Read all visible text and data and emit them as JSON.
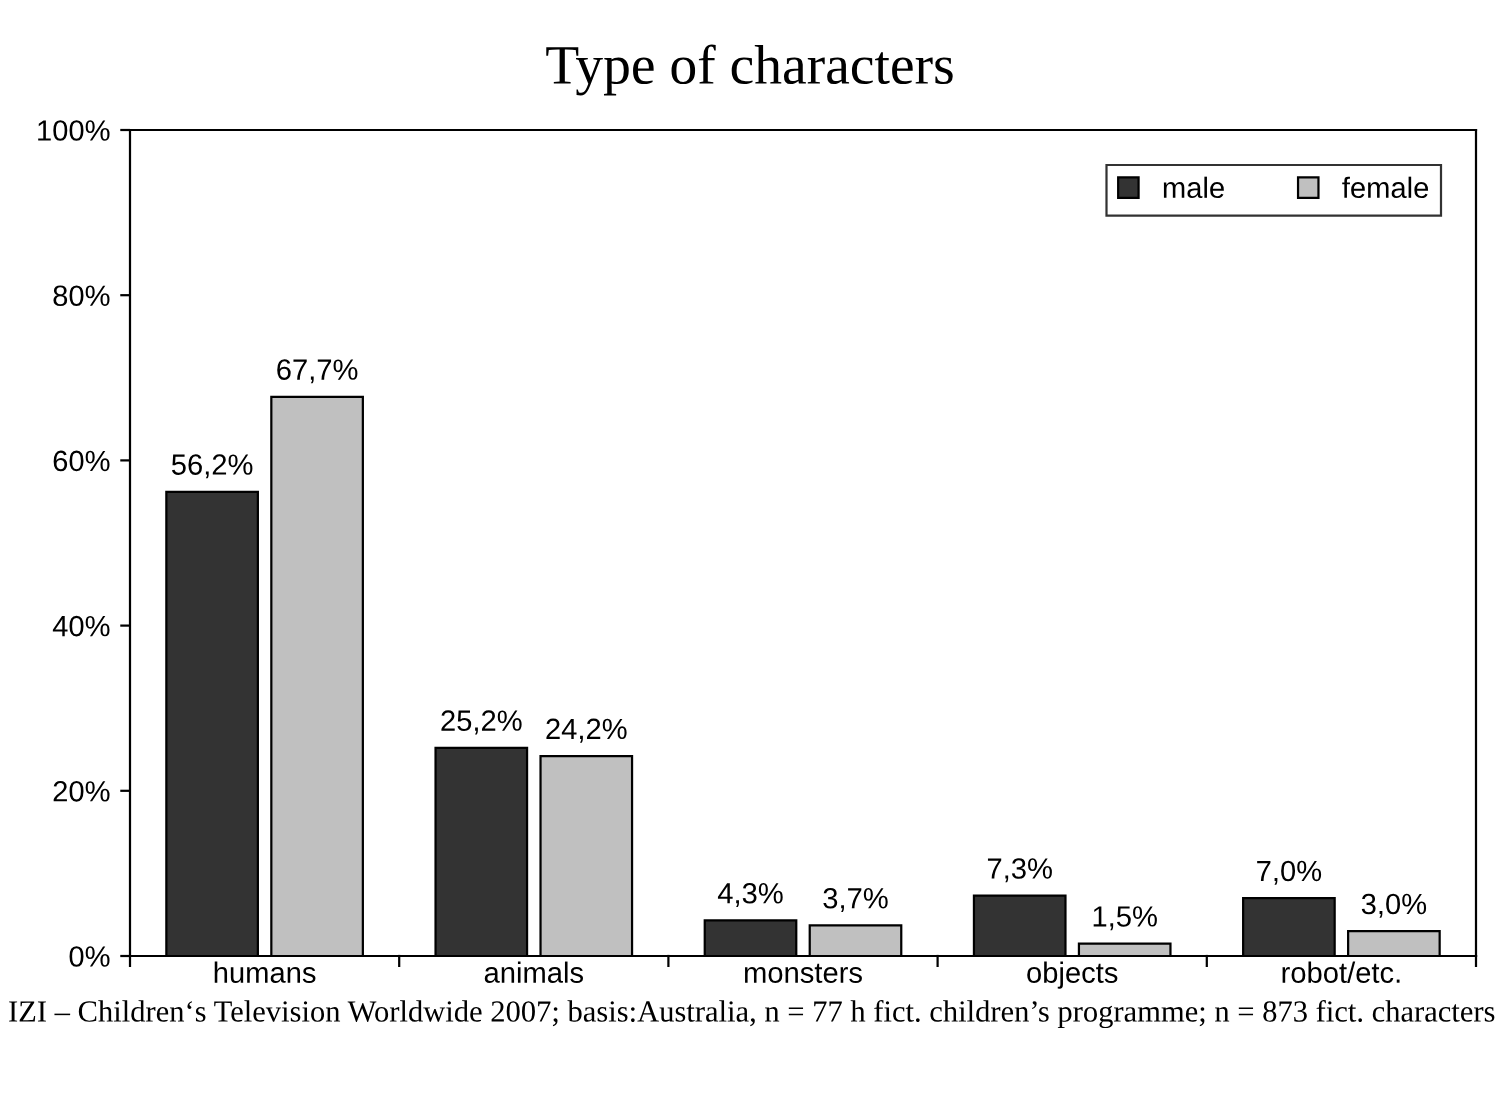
{
  "chart_data": {
    "type": "bar",
    "title": "Type of characters",
    "categories": [
      "humans",
      "animals",
      "monsters",
      "objects",
      "robot/etc."
    ],
    "series": [
      {
        "name": "male",
        "color": "#333333",
        "values": [
          56.2,
          25.2,
          4.3,
          7.3,
          7.0
        ],
        "value_labels": [
          "56,2%",
          "25,2%",
          "4,3%",
          "7,3%",
          "7,0%"
        ]
      },
      {
        "name": "female",
        "color": "#c0c0c0",
        "values": [
          67.7,
          24.2,
          3.7,
          1.5,
          3.0
        ],
        "value_labels": [
          "67,7%",
          "24,2%",
          "3,7%",
          "1,5%",
          "3,0%"
        ]
      }
    ],
    "ylim": [
      0,
      100
    ],
    "yticks": [
      {
        "value": 0,
        "label": "0%"
      },
      {
        "value": 20,
        "label": "20%"
      },
      {
        "value": 40,
        "label": "40%"
      },
      {
        "value": 60,
        "label": "60%"
      },
      {
        "value": 80,
        "label": "80%"
      },
      {
        "value": 100,
        "label": "100%"
      }
    ],
    "grid": false,
    "legend": "top right",
    "annotations": [
      "IZI – Children‘s Television Worldwide 2007; basis:Australia, n = 77 h fict. children’s programme; n = 873 fict. characters"
    ]
  }
}
